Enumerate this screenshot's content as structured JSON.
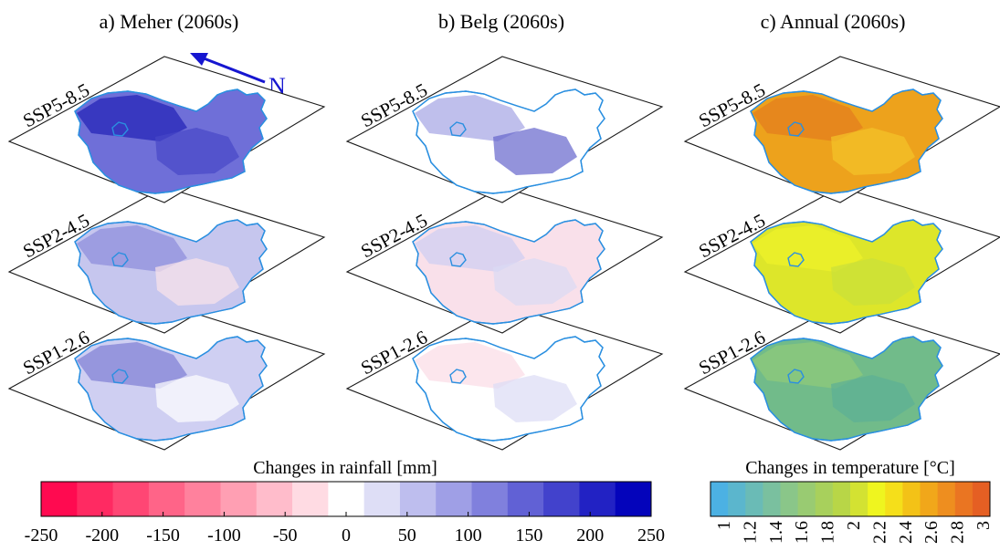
{
  "panels": [
    {
      "title": "a) Meher (2060s)",
      "layers": [
        {
          "label": "SSP5-8.5",
          "fill": "#6f6fd8",
          "blob": "#2626b8",
          "blob2": "#4747c8",
          "opacity": 1.0
        },
        {
          "label": "SSP2-4.5",
          "fill": "#c6c6ee",
          "blob": "#8f8fdc",
          "blob2": "#fbe4ea",
          "opacity": 1.0
        },
        {
          "label": "SSP1-2.6",
          "fill": "#cfcff2",
          "blob": "#8383d6",
          "blob2": "#ffffff",
          "opacity": 1.0
        }
      ]
    },
    {
      "title": "b) Belg (2060s)",
      "layers": [
        {
          "label": "SSP5-8.5",
          "fill": "#ffffff",
          "blob": "#a9a9e6",
          "blob2": "#6565cc",
          "opacity": 1.0
        },
        {
          "label": "SSP2-4.5",
          "fill": "#f9e0ea",
          "blob": "#cfcff2",
          "blob2": "#dadaf4",
          "opacity": 1.0
        },
        {
          "label": "SSP1-2.6",
          "fill": "#ffffff",
          "blob": "#fbdde7",
          "blob2": "#dcdcf5",
          "opacity": 1.0
        }
      ]
    },
    {
      "title": "c) Annual (2060s)",
      "layers": [
        {
          "label": "SSP5-8.5",
          "fill": "#eda21c",
          "blob": "#e37d1e",
          "blob2": "#f3c52a",
          "opacity": 1.0
        },
        {
          "label": "SSP2-4.5",
          "fill": "#dde62a",
          "blob": "#eef22a",
          "blob2": "#c9df3a",
          "opacity": 1.0
        },
        {
          "label": "SSP1-2.6",
          "fill": "#71bb8a",
          "blob": "#8fc97a",
          "blob2": "#5caf95",
          "opacity": 1.0
        }
      ]
    }
  ],
  "north_label": "N",
  "north_color": "#1616d0",
  "rain_colorbar": {
    "title": "Changes in rainfall [mm]",
    "colors": [
      "#ff0a50",
      "#ff2a62",
      "#ff4674",
      "#ff6488",
      "#ff819d",
      "#ff9fb3",
      "#ffbccb",
      "#ffdbe3",
      "#ffffff",
      "#dedef6",
      "#bebeee",
      "#9f9fe6",
      "#8080dd",
      "#6161d5",
      "#4242cc",
      "#2222c4",
      "#0404bb"
    ],
    "ticks": [
      "-250",
      "-200",
      "-150",
      "-100",
      "-50",
      "0",
      "50",
      "100",
      "150",
      "200",
      "250"
    ]
  },
  "temp_colorbar": {
    "title": "Changes in temperature [°C]",
    "colors": [
      "#4cb1e3",
      "#5bb6cd",
      "#6abbb6",
      "#7ac09f",
      "#8ac689",
      "#99cb72",
      "#a8d05c",
      "#b8d647",
      "#d3e232",
      "#eff51f",
      "#f5df1a",
      "#f3c217",
      "#f1a71a",
      "#ee8e1f",
      "#ea7522",
      "#e55f23"
    ],
    "ticks": [
      "1",
      "1.2",
      "1.4",
      "1.6",
      "1.8",
      "2",
      "2.2",
      "2.4",
      "2.6",
      "2.8",
      "3"
    ]
  }
}
